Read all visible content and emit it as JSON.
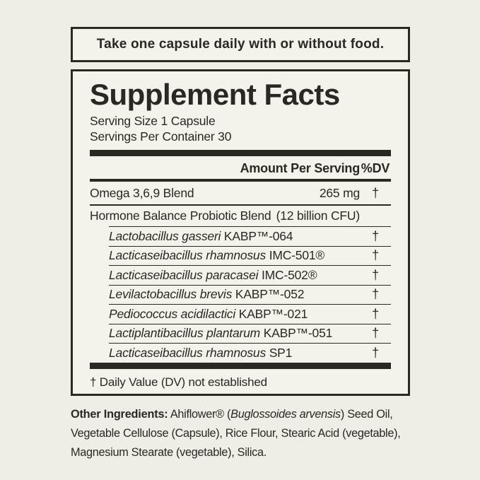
{
  "colors": {
    "background": "#f0ede7",
    "panel": "#f5f2ec",
    "ink": "#2b2824"
  },
  "directions": {
    "text": "Take one capsule daily with or without food."
  },
  "facts": {
    "title": "Supplement Facts",
    "serving_size": "Serving Size 1 Capsule",
    "servings_per_container": "Servings Per Container 30",
    "columns": {
      "amount": "Amount Per Serving",
      "dv": "%DV"
    },
    "rows": [
      {
        "name": "Omega 3,6,9 Blend",
        "amount": "265 mg",
        "dv": "†"
      },
      {
        "name": "Hormone Balance Probiotic Blend",
        "amount": "(12 billion CFU)",
        "dv": ""
      }
    ],
    "strains": [
      {
        "species": "Lactobacillus gasseri",
        "code": "KABP™-064",
        "dv": "†"
      },
      {
        "species": "Lacticaseibacillus rhamnosus",
        "code": "IMC-501®",
        "dv": "†"
      },
      {
        "species": "Lacticaseibacillus paracasei",
        "code": "IMC-502®",
        "dv": "†"
      },
      {
        "species": "Levilactobacillus brevis",
        "code": "KABP™-052",
        "dv": "†"
      },
      {
        "species": "Pediococcus acidilactici",
        "code": "KABP™-021",
        "dv": "†"
      },
      {
        "species": "Lactiplantibacillus plantarum",
        "code": "KABP™-051",
        "dv": "†"
      },
      {
        "species": "Lacticaseibacillus rhamnosus",
        "code": "SP1",
        "dv": "†"
      }
    ],
    "footnote": "† Daily Value (DV) not established"
  },
  "other_ingredients": {
    "label": "Other Ingredients:",
    "segments": [
      {
        "text": " Ahiflower® (",
        "style": "regular"
      },
      {
        "text": "Buglossoides arvensis",
        "style": "italic"
      },
      {
        "text": ") Seed Oil, Vegetable Cellulose (Capsule), Rice Flour, Stearic Acid (vegetable), Magnesium Stearate (vegetable), Silica.",
        "style": "regular"
      }
    ]
  }
}
